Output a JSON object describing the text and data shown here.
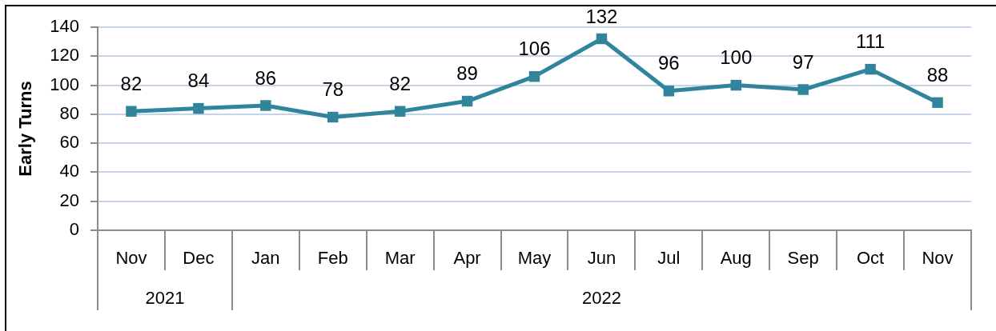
{
  "chart_data": {
    "type": "line",
    "ylabel": "Early Turns",
    "categories": [
      "Nov",
      "Dec",
      "Jan",
      "Feb",
      "Mar",
      "Apr",
      "May",
      "Jun",
      "Jul",
      "Aug",
      "Sep",
      "Oct",
      "Nov"
    ],
    "values": [
      82,
      84,
      86,
      78,
      82,
      89,
      106,
      132,
      96,
      100,
      97,
      111,
      88
    ],
    "color": "#31849b",
    "ylim": [
      0,
      140
    ],
    "yticks": [
      0,
      20,
      40,
      60,
      80,
      100,
      120,
      140
    ],
    "grid": "y",
    "marker": "square",
    "data_labels": true,
    "annotations": [
      "2021",
      "2022"
    ]
  }
}
